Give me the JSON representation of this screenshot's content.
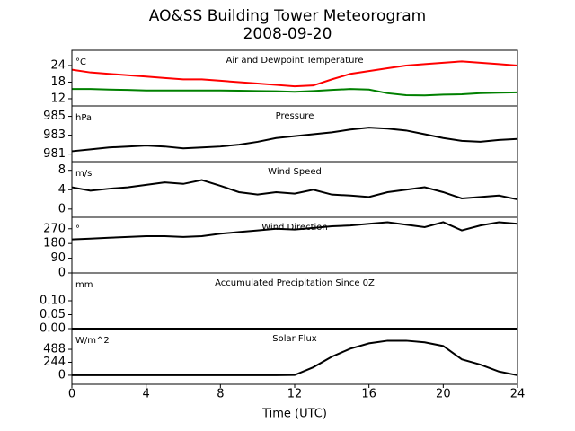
{
  "title": "AO&SS Building Tower Meteorogram",
  "subtitle": "2008-09-20",
  "xlabel": "Time (UTC)",
  "xlim": [
    0,
    24
  ],
  "xticks": [
    0,
    4,
    8,
    12,
    16,
    20,
    24
  ],
  "x": [
    0,
    1,
    2,
    3,
    4,
    5,
    6,
    7,
    8,
    9,
    10,
    11,
    12,
    13,
    14,
    15,
    16,
    17,
    18,
    19,
    20,
    21,
    22,
    23,
    24
  ],
  "chart_data": [
    {
      "type": "line",
      "title": "Air and Dewpoint Temperature",
      "ylabel": "°C",
      "ylim": [
        9.4,
        29.5
      ],
      "yticks": [
        12,
        18,
        24
      ],
      "series": [
        {
          "color": "#ff0000",
          "values": [
            22.5,
            21.5,
            21,
            20.5,
            20,
            19.5,
            19,
            19,
            18.5,
            18,
            17.5,
            17,
            16.5,
            16.8,
            19,
            21,
            22,
            23,
            24,
            24.5,
            25,
            25.5,
            25,
            24.5,
            24
          ]
        },
        {
          "color": "#008000",
          "values": [
            15.5,
            15.5,
            15.3,
            15.2,
            15,
            15,
            15,
            15,
            15,
            14.9,
            14.8,
            14.7,
            14.5,
            14.8,
            15.2,
            15.5,
            15.3,
            14,
            13.3,
            13.2,
            13.5,
            13.6,
            14,
            14.2,
            14.3
          ]
        }
      ]
    },
    {
      "type": "line",
      "title": "Pressure",
      "ylabel": "hPa",
      "ylim": [
        980.2,
        986.1
      ],
      "yticks": [
        981,
        983,
        985
      ],
      "series": [
        {
          "color": "#000000",
          "values": [
            981.3,
            981.5,
            981.7,
            981.8,
            981.9,
            981.8,
            981.6,
            981.7,
            981.8,
            982,
            982.3,
            982.7,
            982.9,
            983.1,
            983.3,
            983.6,
            983.8,
            983.7,
            983.5,
            983.1,
            982.7,
            982.4,
            982.3,
            982.5,
            982.6
          ]
        }
      ]
    },
    {
      "type": "line",
      "title": "Wind Speed",
      "ylabel": "m/s",
      "ylim": [
        -1.7,
        9.8
      ],
      "yticks": [
        0,
        4,
        8
      ],
      "series": [
        {
          "color": "#000000",
          "values": [
            4.5,
            3.8,
            4.2,
            4.5,
            5,
            5.5,
            5.2,
            6,
            4.8,
            3.5,
            3,
            3.5,
            3.2,
            4,
            3,
            2.8,
            2.5,
            3.5,
            4,
            4.5,
            3.5,
            2.2,
            2.5,
            2.8,
            2
          ]
        }
      ]
    },
    {
      "type": "line",
      "title": "Wind Direction",
      "ylabel": "°",
      "ylim": [
        0,
        340
      ],
      "yticks": [
        0,
        90,
        180,
        270
      ],
      "series": [
        {
          "color": "#000000",
          "values": [
            205,
            210,
            215,
            220,
            225,
            225,
            220,
            225,
            240,
            250,
            260,
            270,
            265,
            275,
            285,
            290,
            300,
            310,
            295,
            280,
            310,
            260,
            290,
            310,
            300
          ]
        }
      ]
    },
    {
      "type": "line",
      "title": "Accumulated Precipitation Since 0Z",
      "ylabel": "mm",
      "ylim": [
        0,
        0.2
      ],
      "yticks": [
        {
          "value": 0,
          "label": "0.00"
        },
        {
          "value": 0.05,
          "label": "0.05"
        },
        {
          "value": 0.1,
          "label": "0.10"
        }
      ],
      "series": [
        {
          "color": "#000000",
          "values": [
            0,
            0,
            0,
            0,
            0,
            0,
            0,
            0,
            0,
            0,
            0,
            0,
            0,
            0,
            0,
            0,
            0,
            0,
            0,
            0,
            0,
            0,
            0,
            0,
            0
          ]
        }
      ]
    },
    {
      "type": "line",
      "title": "Solar Flux",
      "ylabel": "W/m^2",
      "ylim": [
        -170,
        877
      ],
      "yticks": [
        0,
        244,
        488
      ],
      "series": [
        {
          "color": "#000000",
          "values": [
            0,
            0,
            0,
            0,
            0,
            0,
            0,
            0,
            0,
            0,
            0,
            0,
            5,
            150,
            350,
            500,
            600,
            650,
            650,
            620,
            550,
            300,
            200,
            70,
            0
          ]
        }
      ]
    }
  ]
}
